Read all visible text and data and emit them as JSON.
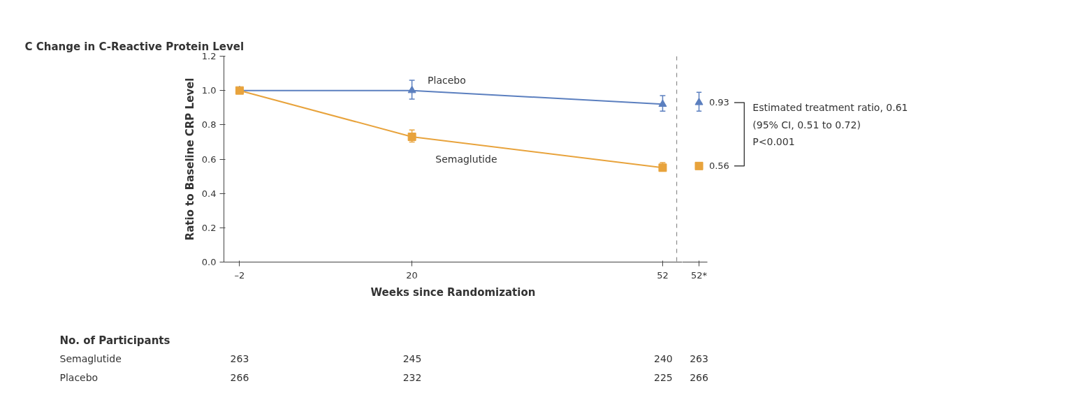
{
  "chart_data": [
    {
      "type": "line",
      "title": "C  Change in C-Reactive Protein Level",
      "xlabel": "Weeks since Randomization",
      "ylabel": "Ratio to Baseline CRP Level",
      "x": [
        -2,
        20,
        52
      ],
      "xlim": [
        -4,
        54.5
      ],
      "xticks": [
        {
          "value": -2,
          "label": "–2"
        },
        20,
        52
      ],
      "ylim": [
        0,
        1.2
      ],
      "yticks": [
        {
          "value": 0,
          "label": "0.0"
        },
        0.2,
        0.4,
        0.6,
        0.8,
        {
          "value": 1,
          "label": "1.0"
        },
        1.2
      ],
      "series": [
        {
          "name": "Placebo",
          "color": "#5b7fbf",
          "marker": "triangle",
          "values": [
            1.0,
            1.0,
            0.92
          ],
          "errors": [
            null,
            [
              0.95,
              1.06
            ],
            [
              0.88,
              0.97
            ]
          ]
        },
        {
          "name": "Semaglutide",
          "color": "#e8a33c",
          "marker": "square",
          "values": [
            1.0,
            0.73,
            0.55
          ],
          "errors": [
            null,
            [
              0.7,
              0.77
            ],
            [
              0.53,
              0.58
            ]
          ]
        }
      ],
      "ref_lines": [
        {
          "axis": "x",
          "value": 53.8,
          "color": "#777777",
          "line_style": "dashed"
        }
      ],
      "annotations": [
        "No. of Participants",
        "Semaglutide",
        "263",
        "245",
        "240",
        "263",
        "Placebo",
        "266",
        "232",
        "225",
        "266"
      ],
      "grid": false,
      "line_style": "solid"
    },
    {
      "type": "scatter",
      "categories": [
        "52*"
      ],
      "ylim": [
        0,
        1.2
      ],
      "tick_labels": "x",
      "series": [
        {
          "color": "#5b7fbf",
          "marker": "triangle",
          "values": [
            0.93
          ],
          "errors": [
            [
              0.88,
              0.99
            ]
          ],
          "value_labels": [
            "0.93"
          ]
        },
        {
          "color": "#e8a33c",
          "marker": "square",
          "values": [
            0.56
          ],
          "errors": [
            null
          ],
          "value_labels": [
            "0.56"
          ]
        }
      ],
      "annotations": [
        "Estimated treatment ratio, 0.61",
        "   (95% CI, 0.51 to 0.72)",
        "P<0.001"
      ],
      "grid": false
    }
  ]
}
